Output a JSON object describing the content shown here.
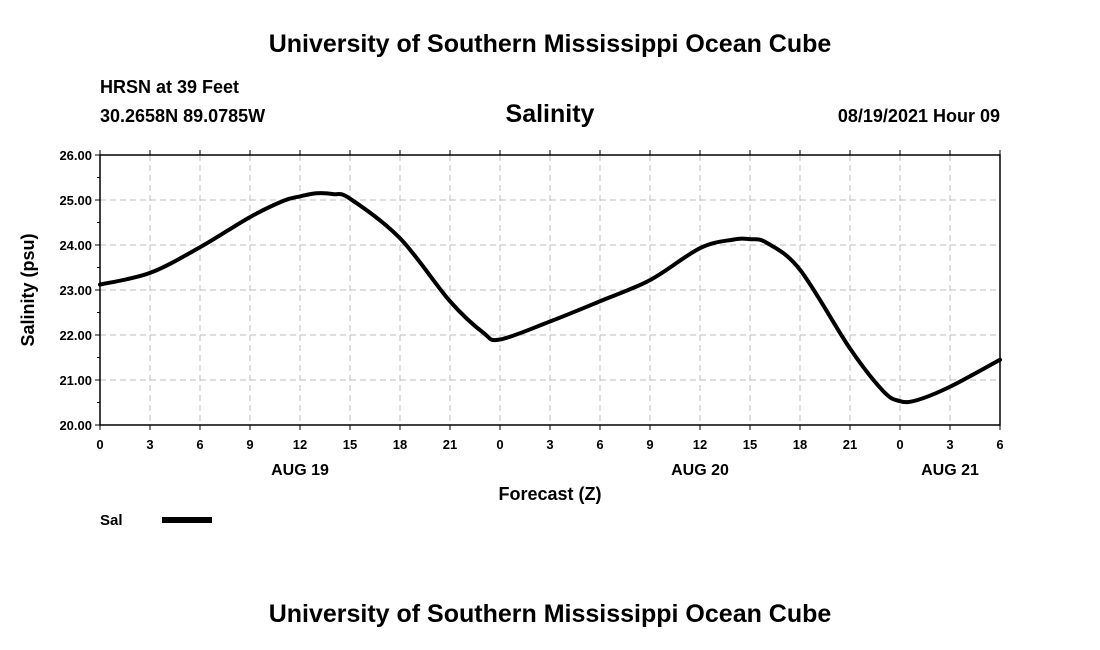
{
  "header": {
    "title": "University of Southern Mississippi Ocean Cube",
    "station": "HRSN at 39 Feet",
    "coordinates": "30.2658N  89.0785W",
    "subtitle": "Salinity",
    "run_time": "08/19/2021 Hour 09"
  },
  "footer": {
    "title": "University of Southern Mississippi Ocean Cube"
  },
  "chart_data": {
    "type": "line",
    "ylabel": "Salinity (psu)",
    "xlabel": "Forecast (Z)",
    "ylim": [
      20,
      26
    ],
    "y_ticks": [
      "20.00",
      "21.00",
      "22.00",
      "23.00",
      "24.00",
      "25.00",
      "26.00"
    ],
    "x_ticks": [
      "0",
      "3",
      "6",
      "9",
      "12",
      "15",
      "18",
      "21",
      "0",
      "3",
      "6",
      "9",
      "12",
      "15",
      "18",
      "21",
      "0",
      "3",
      "6"
    ],
    "date_labels": [
      {
        "label": "AUG 19",
        "at_hour": 12
      },
      {
        "label": "AUG 20",
        "at_hour": 36
      },
      {
        "label": "AUG 21",
        "at_hour": 51
      }
    ],
    "grid": true,
    "line_color": "#000000",
    "series": [
      {
        "name": "Sal",
        "x": [
          0,
          3,
          6,
          9,
          11,
          12,
          13,
          14,
          15,
          18,
          21,
          23,
          24,
          27,
          30,
          33,
          36,
          38,
          39,
          40,
          42,
          45,
          47,
          48,
          49,
          51,
          54
        ],
        "values": [
          23.12,
          23.38,
          23.95,
          24.62,
          24.98,
          25.08,
          25.15,
          25.13,
          25.03,
          24.15,
          22.75,
          22.05,
          21.9,
          22.3,
          22.75,
          23.22,
          23.93,
          24.12,
          24.13,
          24.05,
          23.45,
          21.7,
          20.75,
          20.53,
          20.55,
          20.85,
          21.45
        ]
      }
    ],
    "legend": {
      "position": "bottom-left"
    }
  }
}
